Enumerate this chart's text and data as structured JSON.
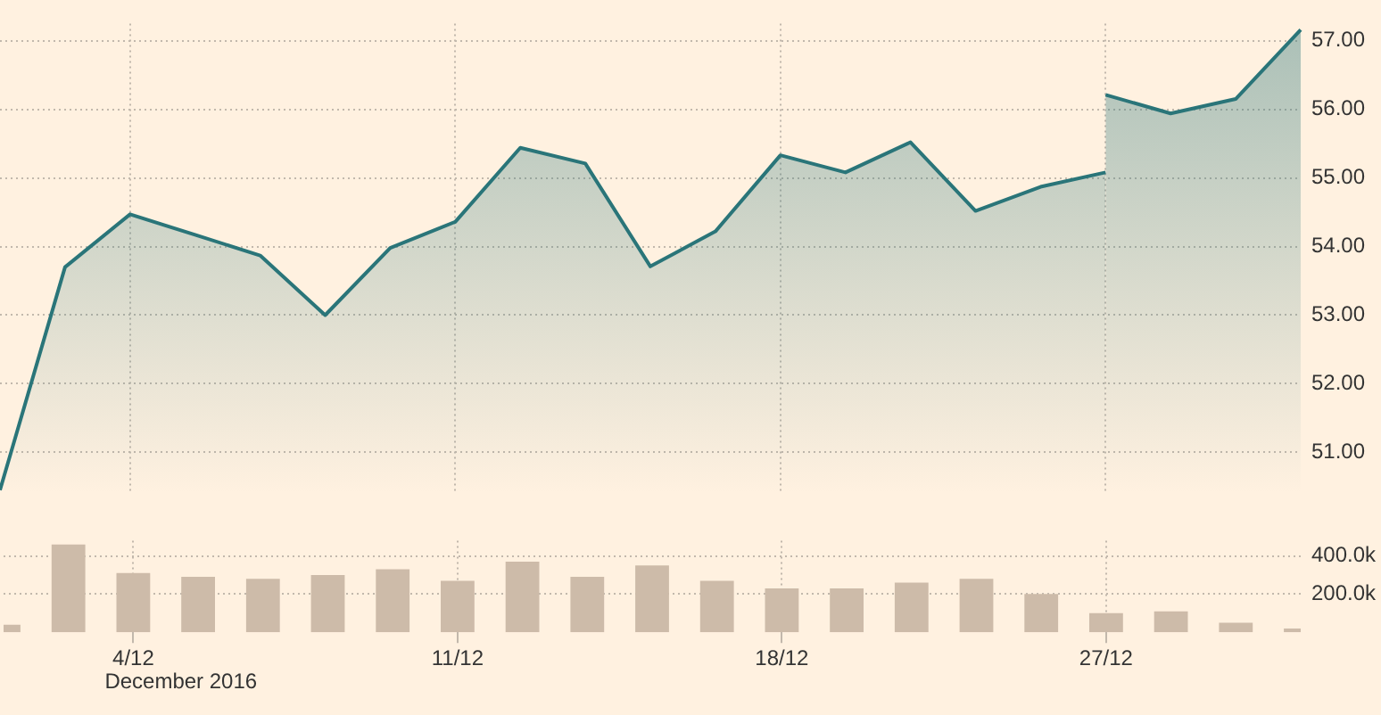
{
  "chart_data": [
    {
      "type": "area",
      "tick_labels": "y",
      "categories": [
        null,
        null,
        null,
        null,
        null,
        null,
        null,
        null,
        null,
        null,
        null,
        null,
        null,
        null,
        null,
        null,
        null,
        null,
        null,
        null,
        null
      ],
      "ylim": [
        50.4,
        57.25
      ],
      "yticks": [
        {
          "value": 51,
          "label": "51.00"
        },
        {
          "value": 52,
          "label": "52.00"
        },
        {
          "value": 53,
          "label": "53.00"
        },
        {
          "value": 54,
          "label": "54.00"
        },
        {
          "value": 55,
          "label": "55.00"
        },
        {
          "value": 56,
          "label": "56.00"
        },
        {
          "value": 57,
          "label": "57.00"
        }
      ],
      "grid": true,
      "legend": false,
      "marker": "none",
      "line_style": "solid",
      "series": [
        {
          "color": "#2a7579",
          "values": [
            50.45,
            53.7,
            54.47,
            54.17,
            53.87,
            53.0,
            53.98,
            54.36,
            55.44,
            55.21,
            53.71,
            54.22,
            55.33,
            55.08,
            55.52,
            54.52,
            54.87,
            55.08,
            null,
            null,
            null
          ]
        },
        {
          "color": "#2a7579",
          "values": [
            null,
            null,
            null,
            null,
            null,
            null,
            null,
            null,
            null,
            null,
            null,
            null,
            null,
            null,
            null,
            null,
            null,
            56.21,
            55.94,
            56.15,
            57.16
          ]
        }
      ]
    },
    {
      "type": "bar",
      "annotations": [
        "December 2016"
      ],
      "categories": [
        null,
        null,
        "4/12",
        null,
        null,
        null,
        null,
        "11/12",
        null,
        null,
        null,
        null,
        "18/12",
        null,
        null,
        null,
        null,
        "27/12",
        null,
        null,
        null
      ],
      "ylim": [
        0,
        480000
      ],
      "yticks": [
        {
          "value": 200000,
          "label": "200.0k"
        },
        {
          "value": 400000,
          "label": "400.0k"
        }
      ],
      "grid": true,
      "legend": false,
      "series": [
        {
          "color": "#cdbba9",
          "values": [
            40000,
            460000,
            310000,
            290000,
            280000,
            300000,
            330000,
            270000,
            370000,
            290000,
            350000,
            270000,
            230000,
            230000,
            260000,
            280000,
            200000,
            100000,
            110000,
            50000,
            20000
          ]
        }
      ]
    }
  ]
}
